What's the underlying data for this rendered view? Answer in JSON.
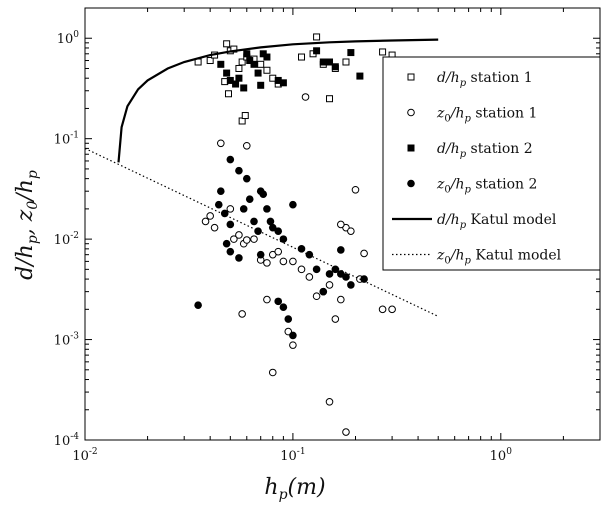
{
  "chart_data": {
    "type": "scatter",
    "xscale": "log",
    "yscale": "log",
    "xlim": [
      0.01,
      3
    ],
    "ylim": [
      0.0001,
      2
    ],
    "xlabel": "h_p(m)",
    "ylabel": "d/h_p, z_0/h_p",
    "xticks": [
      {
        "value": 0.01,
        "base": "10",
        "exp": "-2"
      },
      {
        "value": 0.1,
        "base": "10",
        "exp": "-1"
      },
      {
        "value": 1,
        "base": "10",
        "exp": "0"
      }
    ],
    "yticks": [
      {
        "value": 0.0001,
        "base": "10",
        "exp": "-4"
      },
      {
        "value": 0.001,
        "base": "10",
        "exp": "-3"
      },
      {
        "value": 0.01,
        "base": "10",
        "exp": "-2"
      },
      {
        "value": 0.1,
        "base": "10",
        "exp": "-1"
      },
      {
        "value": 1,
        "base": "10",
        "exp": "0"
      }
    ],
    "legend_position": "top-right",
    "legend": [
      {
        "label": "d/h_p station 1",
        "math": "d/h",
        "sub": "p",
        "rest": " station 1",
        "marker": "square-open"
      },
      {
        "label": "z_0/h_p station 1",
        "math": "z",
        "sub0": "0",
        "math2": "/h",
        "sub": "p",
        "rest": " station 1",
        "marker": "circle-open"
      },
      {
        "label": "d/h_p station 2",
        "math": "d/h",
        "sub": "p",
        "rest": " station 2",
        "marker": "square-filled"
      },
      {
        "label": "z_0/h_p station 2",
        "math": "z",
        "sub0": "0",
        "math2": "/h",
        "sub": "p",
        "rest": " station 2",
        "marker": "circle-filled"
      },
      {
        "label": "d/h_p Katul model",
        "math": "d/h",
        "sub": "p",
        "rest": " Katul model",
        "marker": "line-solid"
      },
      {
        "label": "z_0/h_p Katul model",
        "math": "z",
        "sub0": "0",
        "math2": "/h",
        "sub": "p",
        "rest": " Katul model",
        "marker": "line-dotted"
      }
    ],
    "series": [
      {
        "name": "d/h_p station 1",
        "marker": "square-open",
        "points": [
          [
            0.035,
            0.58
          ],
          [
            0.04,
            0.6
          ],
          [
            0.042,
            0.68
          ],
          [
            0.048,
            0.88
          ],
          [
            0.05,
            0.75
          ],
          [
            0.052,
            0.78
          ],
          [
            0.055,
            0.5
          ],
          [
            0.057,
            0.58
          ],
          [
            0.06,
            0.65
          ],
          [
            0.065,
            0.62
          ],
          [
            0.07,
            0.55
          ],
          [
            0.075,
            0.48
          ],
          [
            0.08,
            0.4
          ],
          [
            0.085,
            0.35
          ],
          [
            0.047,
            0.37
          ],
          [
            0.049,
            0.28
          ],
          [
            0.057,
            0.15
          ],
          [
            0.059,
            0.17
          ],
          [
            0.11,
            0.65
          ],
          [
            0.125,
            0.7
          ],
          [
            0.13,
            1.03
          ],
          [
            0.14,
            0.55
          ],
          [
            0.16,
            0.5
          ],
          [
            0.18,
            0.58
          ],
          [
            0.27,
            0.73
          ],
          [
            0.3,
            0.68
          ],
          [
            0.15,
            0.25
          ]
        ]
      },
      {
        "name": "z_0/h_p station 1",
        "marker": "circle-open",
        "points": [
          [
            0.045,
            0.09
          ],
          [
            0.06,
            0.085
          ],
          [
            0.038,
            0.015
          ],
          [
            0.04,
            0.017
          ],
          [
            0.042,
            0.013
          ],
          [
            0.05,
            0.02
          ],
          [
            0.052,
            0.01
          ],
          [
            0.055,
            0.011
          ],
          [
            0.058,
            0.009
          ],
          [
            0.06,
            0.0098
          ],
          [
            0.065,
            0.01
          ],
          [
            0.07,
            0.0062
          ],
          [
            0.075,
            0.0058
          ],
          [
            0.08,
            0.007
          ],
          [
            0.085,
            0.0075
          ],
          [
            0.09,
            0.006
          ],
          [
            0.1,
            0.006
          ],
          [
            0.11,
            0.005
          ],
          [
            0.12,
            0.0042
          ],
          [
            0.13,
            0.0027
          ],
          [
            0.14,
            0.003
          ],
          [
            0.15,
            0.0035
          ],
          [
            0.17,
            0.0025
          ],
          [
            0.16,
            0.0016
          ],
          [
            0.18,
            0.013
          ],
          [
            0.19,
            0.012
          ],
          [
            0.22,
            0.0072
          ],
          [
            0.21,
            0.004
          ],
          [
            0.2,
            0.031
          ],
          [
            0.17,
            0.014
          ],
          [
            0.27,
            0.002
          ],
          [
            0.3,
            0.002
          ],
          [
            0.075,
            0.0025
          ],
          [
            0.095,
            0.0012
          ],
          [
            0.1,
            0.00088
          ],
          [
            0.08,
            0.00047
          ],
          [
            0.15,
            0.00024
          ],
          [
            0.18,
            0.00012
          ],
          [
            0.057,
            0.0018
          ],
          [
            0.115,
            0.26
          ]
        ]
      },
      {
        "name": "d/h_p station 2",
        "marker": "square-filled",
        "points": [
          [
            0.045,
            0.55
          ],
          [
            0.048,
            0.45
          ],
          [
            0.05,
            0.38
          ],
          [
            0.053,
            0.35
          ],
          [
            0.055,
            0.4
          ],
          [
            0.058,
            0.32
          ],
          [
            0.06,
            0.7
          ],
          [
            0.062,
            0.6
          ],
          [
            0.065,
            0.55
          ],
          [
            0.068,
            0.45
          ],
          [
            0.07,
            0.34
          ],
          [
            0.072,
            0.7
          ],
          [
            0.075,
            0.65
          ],
          [
            0.085,
            0.38
          ],
          [
            0.09,
            0.36
          ],
          [
            0.13,
            0.75
          ],
          [
            0.14,
            0.58
          ],
          [
            0.15,
            0.58
          ],
          [
            0.16,
            0.52
          ],
          [
            0.19,
            0.72
          ],
          [
            0.21,
            0.42
          ]
        ]
      },
      {
        "name": "z_0/h_p station 2",
        "marker": "circle-filled",
        "points": [
          [
            0.05,
            0.062
          ],
          [
            0.055,
            0.048
          ],
          [
            0.045,
            0.03
          ],
          [
            0.044,
            0.022
          ],
          [
            0.047,
            0.018
          ],
          [
            0.05,
            0.014
          ],
          [
            0.048,
            0.009
          ],
          [
            0.05,
            0.0075
          ],
          [
            0.055,
            0.0065
          ],
          [
            0.058,
            0.02
          ],
          [
            0.06,
            0.04
          ],
          [
            0.062,
            0.025
          ],
          [
            0.065,
            0.015
          ],
          [
            0.068,
            0.012
          ],
          [
            0.07,
            0.03
          ],
          [
            0.072,
            0.028
          ],
          [
            0.075,
            0.02
          ],
          [
            0.078,
            0.015
          ],
          [
            0.08,
            0.013
          ],
          [
            0.085,
            0.012
          ],
          [
            0.09,
            0.01
          ],
          [
            0.1,
            0.022
          ],
          [
            0.11,
            0.008
          ],
          [
            0.12,
            0.007
          ],
          [
            0.13,
            0.005
          ],
          [
            0.14,
            0.003
          ],
          [
            0.15,
            0.0045
          ],
          [
            0.16,
            0.005
          ],
          [
            0.17,
            0.0045
          ],
          [
            0.18,
            0.0042
          ],
          [
            0.19,
            0.0035
          ],
          [
            0.17,
            0.0078
          ],
          [
            0.22,
            0.004
          ],
          [
            0.035,
            0.0022
          ],
          [
            0.085,
            0.0024
          ],
          [
            0.09,
            0.0021
          ],
          [
            0.095,
            0.0016
          ],
          [
            0.1,
            0.0011
          ],
          [
            0.07,
            0.007
          ]
        ]
      },
      {
        "name": "d/h_p Katul model",
        "marker": "line-solid",
        "curve": [
          [
            0.0145,
            0.058
          ],
          [
            0.015,
            0.13
          ],
          [
            0.016,
            0.21
          ],
          [
            0.018,
            0.31
          ],
          [
            0.02,
            0.38
          ],
          [
            0.025,
            0.5
          ],
          [
            0.03,
            0.58
          ],
          [
            0.04,
            0.68
          ],
          [
            0.05,
            0.74
          ],
          [
            0.07,
            0.81
          ],
          [
            0.1,
            0.87
          ],
          [
            0.15,
            0.91
          ],
          [
            0.2,
            0.93
          ],
          [
            0.3,
            0.95
          ],
          [
            0.4,
            0.96
          ],
          [
            0.5,
            0.97
          ]
        ]
      },
      {
        "name": "z_0/h_p Katul model",
        "marker": "line-dotted",
        "curve": [
          [
            0.01,
            0.08
          ],
          [
            0.5,
            0.0017
          ]
        ]
      }
    ]
  }
}
